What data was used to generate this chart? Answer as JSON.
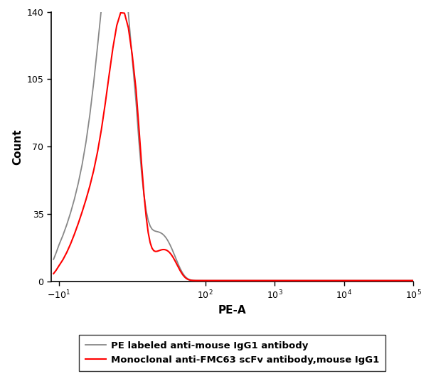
{
  "ylabel": "Count",
  "xlabel": "PE-A",
  "ylim": [
    0,
    140
  ],
  "yticks": [
    0,
    35,
    70,
    105,
    140
  ],
  "legend": [
    {
      "label": "PE labeled anti-mouse IgG1 antibody",
      "color": "#888888",
      "lw": 1.3
    },
    {
      "label": "Monoclonal anti-FMC63 scFv antibody,mouse IgG1",
      "color": "#ff0000",
      "lw": 1.5
    }
  ],
  "gray_peak_amp": 140,
  "red_peak_amp": 115,
  "background_color": "#ffffff",
  "xlabel_fontsize": 11,
  "ylabel_fontsize": 11,
  "legend_fontsize": 9.5,
  "xtick_positions": [
    -10,
    1,
    100,
    1000,
    10000,
    100000
  ],
  "linthresh": 10,
  "linscale": 0.5
}
